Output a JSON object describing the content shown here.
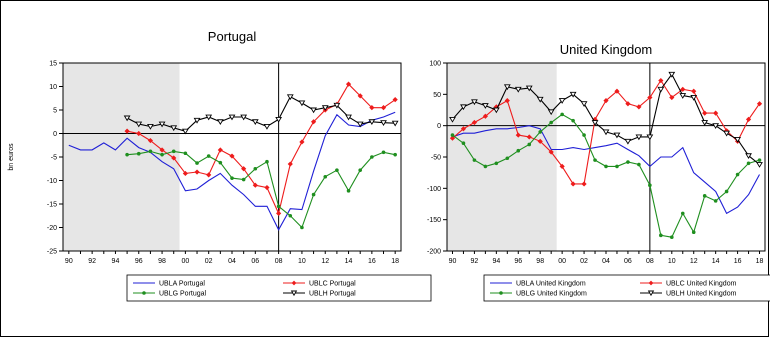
{
  "chart_data": [
    {
      "type": "line",
      "title": "Portugal",
      "ylabel": "bn euros",
      "xlabel": "",
      "ylim": [
        -25,
        15
      ],
      "yticks": [
        15,
        10,
        5,
        0,
        -5,
        -10,
        -15,
        -20,
        -25
      ],
      "xlim": [
        1989.5,
        2018.5
      ],
      "xtick_labels": [
        "90",
        "92",
        "94",
        "96",
        "98",
        "00",
        "02",
        "04",
        "06",
        "08",
        "10",
        "12",
        "14",
        "16",
        "18"
      ],
      "shaded_period": [
        1989.5,
        1999.5
      ],
      "vertical_line": 2008,
      "grid": false,
      "legend_position": "bottom",
      "series": [
        {
          "name": "UBLA Portugal",
          "color": "#1f1fd6",
          "marker": "none",
          "x": [
            1990,
            1991,
            1992,
            1993,
            1994,
            1995,
            1996,
            1997,
            1998,
            1999,
            2000,
            2001,
            2002,
            2003,
            2004,
            2005,
            2006,
            2007,
            2008,
            2009,
            2010,
            2011,
            2012,
            2013,
            2014,
            2015,
            2016,
            2017,
            2018
          ],
          "y": [
            -2.5,
            -3.5,
            -3.5,
            -2,
            -3.5,
            -1,
            -3,
            -4,
            -6,
            -7.5,
            -12.2,
            -11.8,
            -10,
            -8.5,
            -11,
            -13,
            -15.5,
            -15.5,
            -20.5,
            -16,
            -16.2,
            -8,
            -0.5,
            4,
            1.8,
            1.5,
            2.8,
            3.5,
            4.5
          ]
        },
        {
          "name": "UBLC Portugal",
          "color": "#ee1c1c",
          "marker": "diamond",
          "x": [
            1995,
            1996,
            1997,
            1998,
            1999,
            2000,
            2001,
            2002,
            2003,
            2004,
            2005,
            2006,
            2007,
            2008,
            2009,
            2010,
            2011,
            2012,
            2013,
            2014,
            2015,
            2016,
            2017,
            2018
          ],
          "y": [
            0.5,
            0,
            -1.5,
            -3.5,
            -5.2,
            -8.5,
            -8.2,
            -8.8,
            -3.5,
            -4.8,
            -7.5,
            -11,
            -11.5,
            -17,
            -6.5,
            -1.8,
            2.5,
            5,
            6.2,
            10.5,
            8,
            5.5,
            5.5,
            7.2
          ]
        },
        {
          "name": "UBLG Portugal",
          "color": "#1f8f1f",
          "marker": "dot",
          "x": [
            1995,
            1996,
            1997,
            1998,
            1999,
            2000,
            2001,
            2002,
            2003,
            2004,
            2005,
            2006,
            2007,
            2008,
            2009,
            2010,
            2011,
            2012,
            2013,
            2014,
            2015,
            2016,
            2017,
            2018
          ],
          "y": [
            -4.5,
            -4.3,
            -3.8,
            -4.5,
            -3.8,
            -4.2,
            -6.3,
            -4.8,
            -6.2,
            -9.5,
            -9.8,
            -7.5,
            -6,
            -15.5,
            -17.5,
            -20,
            -13,
            -9.2,
            -7.8,
            -12.2,
            -7.8,
            -5,
            -4,
            -4.5
          ]
        },
        {
          "name": "UBLH Portugal",
          "color": "#000000",
          "marker": "triangle",
          "x": [
            1995,
            1996,
            1997,
            1998,
            1999,
            2000,
            2001,
            2002,
            2003,
            2004,
            2005,
            2006,
            2007,
            2008,
            2009,
            2010,
            2011,
            2012,
            2013,
            2014,
            2015,
            2016,
            2017,
            2018
          ],
          "y": [
            3.3,
            2,
            1.5,
            2,
            1.2,
            0.5,
            2.8,
            3.5,
            2.5,
            3.5,
            3.5,
            2.5,
            1.5,
            3,
            7.8,
            6.5,
            5,
            5.5,
            6,
            3.5,
            2,
            2.5,
            2.3,
            2.2
          ]
        }
      ]
    },
    {
      "type": "line",
      "title": "United Kingdom",
      "ylabel": "",
      "xlabel": "",
      "ylim": [
        -200,
        100
      ],
      "yticks": [
        100,
        50,
        0,
        -50,
        -100,
        -150,
        -200
      ],
      "xlim": [
        1989.5,
        2018.5
      ],
      "xtick_labels": [
        "90",
        "92",
        "94",
        "96",
        "98",
        "00",
        "02",
        "04",
        "06",
        "08",
        "10",
        "12",
        "14",
        "16",
        "18"
      ],
      "shaded_period": [
        1989.5,
        1999.5
      ],
      "vertical_line": 2008,
      "grid": false,
      "legend_position": "bottom",
      "series": [
        {
          "name": "UBLA United Kingdom",
          "color": "#1f1fd6",
          "marker": "none",
          "x": [
            1990,
            1991,
            1992,
            1993,
            1994,
            1995,
            1996,
            1997,
            1998,
            1999,
            2000,
            2001,
            2002,
            2003,
            2004,
            2005,
            2006,
            2007,
            2008,
            2009,
            2010,
            2011,
            2012,
            2013,
            2014,
            2015,
            2016,
            2017,
            2018
          ],
          "y": [
            -18,
            -12,
            -12,
            -8,
            -5,
            -5,
            -3,
            0,
            -5,
            -38,
            -38,
            -35,
            -38,
            -35,
            -32,
            -28,
            -38,
            -48,
            -65,
            -50,
            -50,
            -35,
            -75,
            -90,
            -105,
            -140,
            -130,
            -110,
            -78
          ]
        },
        {
          "name": "UBLC United Kingdom",
          "color": "#ee1c1c",
          "marker": "diamond",
          "x": [
            1990,
            1991,
            1992,
            1993,
            1994,
            1995,
            1996,
            1997,
            1998,
            1999,
            2000,
            2001,
            2002,
            2003,
            2004,
            2005,
            2006,
            2007,
            2008,
            2009,
            2010,
            2011,
            2012,
            2013,
            2014,
            2015,
            2016,
            2017,
            2018
          ],
          "y": [
            -20,
            -5,
            5,
            15,
            30,
            40,
            -15,
            -18,
            -25,
            -42,
            -65,
            -93,
            -93,
            10,
            40,
            55,
            35,
            30,
            45,
            72,
            45,
            58,
            55,
            20,
            20,
            -8,
            -25,
            10,
            35
          ]
        },
        {
          "name": "UBLG United Kingdom",
          "color": "#1f8f1f",
          "marker": "dot",
          "x": [
            1990,
            1991,
            1992,
            1993,
            1994,
            1995,
            1996,
            1997,
            1998,
            1999,
            2000,
            2001,
            2002,
            2003,
            2004,
            2005,
            2006,
            2007,
            2008,
            2009,
            2010,
            2011,
            2012,
            2013,
            2014,
            2015,
            2016,
            2017,
            2018
          ],
          "y": [
            -15,
            -28,
            -55,
            -65,
            -60,
            -52,
            -40,
            -30,
            -10,
            5,
            18,
            8,
            -15,
            -55,
            -65,
            -65,
            -58,
            -62,
            -95,
            -175,
            -178,
            -140,
            -170,
            -112,
            -120,
            -105,
            -78,
            -60,
            -55
          ]
        },
        {
          "name": "UBLH United Kingdom",
          "color": "#000000",
          "marker": "triangle",
          "x": [
            1990,
            1991,
            1992,
            1993,
            1994,
            1995,
            1996,
            1997,
            1998,
            1999,
            2000,
            2001,
            2002,
            2003,
            2004,
            2005,
            2006,
            2007,
            2008,
            2009,
            2010,
            2011,
            2012,
            2013,
            2014,
            2015,
            2016,
            2017,
            2018
          ],
          "y": [
            10,
            30,
            38,
            32,
            25,
            62,
            58,
            60,
            42,
            22,
            40,
            50,
            35,
            5,
            -10,
            -15,
            -25,
            -18,
            -18,
            58,
            82,
            48,
            45,
            5,
            0,
            -12,
            -22,
            -48,
            -62
          ]
        }
      ]
    }
  ]
}
